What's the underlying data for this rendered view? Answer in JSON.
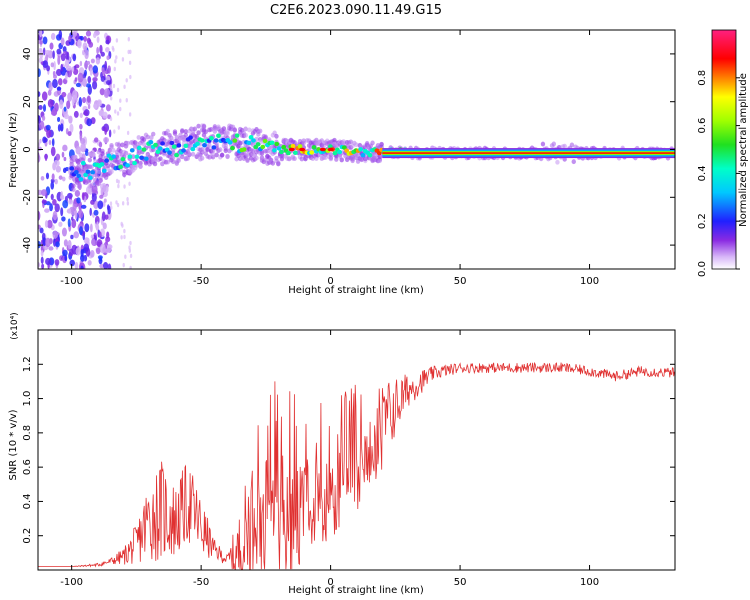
{
  "title": "C2E6.2023.090.11.49.G15",
  "chart_data": [
    {
      "type": "heatmap",
      "name": "spectrogram",
      "xlabel": "Height of straight line (km)",
      "ylabel": "Frequency (Hz)",
      "xlim": [
        -113,
        133
      ],
      "ylim": [
        -50,
        50
      ],
      "xticks": [
        "-100",
        "-50",
        "0",
        "50",
        "100"
      ],
      "yticks": [
        "-40",
        "-20",
        "0",
        "20",
        "40"
      ],
      "ridge": {
        "description_points_x": [
          -113,
          -100,
          -90,
          -85,
          -80,
          -70,
          -60,
          -50,
          -40,
          -30,
          -20,
          -10,
          0,
          10,
          20,
          30,
          50,
          80,
          100,
          133
        ],
        "description_points_freq": [
          -5,
          -10,
          -8,
          -5,
          -4,
          0,
          1,
          3,
          3,
          2,
          0,
          0,
          0,
          -1,
          -1,
          -1.5,
          -1.5,
          -1.5,
          -1.5,
          -1.5
        ]
      },
      "colorbar": {
        "label": "Normalized spectral amplitude",
        "range": [
          0.0,
          1.0
        ],
        "ticks": [
          "0.0",
          "0.2",
          "0.4",
          "0.6",
          "0.8"
        ]
      }
    },
    {
      "type": "line",
      "name": "snr",
      "xlabel": "Height of straight line (km)",
      "ylabel": "SNR (10 * v/v)",
      "ymultiplier": "(x10⁴)",
      "xlim": [
        -113,
        133
      ],
      "ylim": [
        0.0,
        1.4
      ],
      "xticks": [
        "-100",
        "-50",
        "0",
        "50",
        "100"
      ],
      "yticks": [
        "0.2",
        "0.4",
        "0.6",
        "0.8",
        "1.0",
        "1.2"
      ],
      "series": [
        {
          "name": "SNR",
          "color": "#e03030",
          "x": [
            -113,
            -100,
            -90,
            -85,
            -80,
            -75,
            -70,
            -65,
            -60,
            -55,
            -50,
            -45,
            -40,
            -35,
            -30,
            -25,
            -20,
            -15,
            -10,
            -5,
            0,
            5,
            10,
            15,
            20,
            25,
            30,
            35,
            40,
            50,
            60,
            70,
            80,
            90,
            100,
            110,
            120,
            133
          ],
          "y": [
            0.02,
            0.02,
            0.03,
            0.05,
            0.08,
            0.15,
            0.3,
            0.35,
            0.28,
            0.4,
            0.25,
            0.12,
            0.06,
            0.1,
            0.35,
            0.5,
            0.6,
            0.55,
            0.65,
            0.7,
            0.6,
            0.7,
            0.75,
            0.75,
            0.85,
            0.95,
            1.05,
            1.1,
            1.15,
            1.18,
            1.18,
            1.18,
            1.18,
            1.18,
            1.16,
            1.13,
            1.16,
            1.15
          ],
          "noise": [
            0.0,
            0.0,
            0.01,
            0.02,
            0.05,
            0.12,
            0.25,
            0.3,
            0.22,
            0.25,
            0.18,
            0.06,
            0.03,
            0.25,
            0.4,
            0.5,
            0.6,
            0.55,
            0.5,
            0.45,
            0.4,
            0.35,
            0.35,
            0.3,
            0.25,
            0.18,
            0.1,
            0.07,
            0.04,
            0.03,
            0.03,
            0.03,
            0.03,
            0.03,
            0.03,
            0.03,
            0.03,
            0.03
          ]
        }
      ]
    }
  ]
}
